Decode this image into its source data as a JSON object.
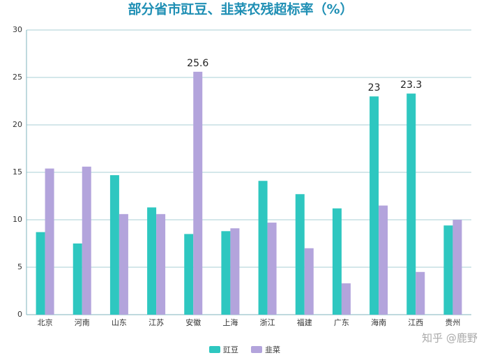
{
  "chart_data": {
    "type": "bar",
    "title": "部分省市豇豆、韭菜农残超标率（%）",
    "categories": [
      "北京",
      "河南",
      "山东",
      "江苏",
      "安徽",
      "上海",
      "浙江",
      "福建",
      "广东",
      "海南",
      "江西",
      "贵州"
    ],
    "series": [
      {
        "name": "豇豆",
        "color": "#2ec7c0",
        "values": [
          8.7,
          7.5,
          14.7,
          11.3,
          8.5,
          8.8,
          14.1,
          12.7,
          11.2,
          23,
          23.3,
          9.4
        ],
        "value_labels": [
          null,
          null,
          null,
          null,
          null,
          null,
          null,
          null,
          null,
          "23",
          "23.3",
          null
        ]
      },
      {
        "name": "韭菜",
        "color": "#b3a4dc",
        "values": [
          15.4,
          15.6,
          10.6,
          10.6,
          25.6,
          9.1,
          9.7,
          7.0,
          3.3,
          11.5,
          4.5,
          10.0
        ],
        "value_labels": [
          null,
          null,
          null,
          null,
          "25.6",
          null,
          null,
          null,
          null,
          null,
          null,
          null
        ]
      }
    ],
    "ylim": [
      0,
      30
    ],
    "yticks": [
      0,
      5,
      10,
      15,
      20,
      25,
      30
    ],
    "grid": true,
    "legend": "bottom",
    "watermark": "知乎 @鹿野"
  }
}
